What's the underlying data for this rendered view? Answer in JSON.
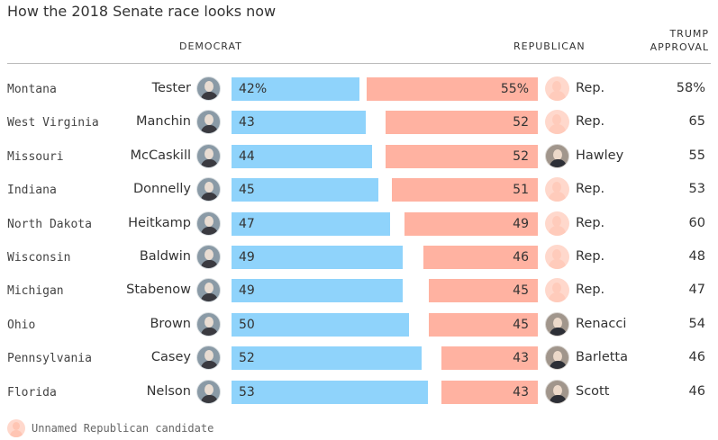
{
  "chart_data": {
    "type": "bar",
    "title": "How the 2018 Senate race looks now",
    "headers": {
      "democrat": "DEMOCRAT",
      "republican": "REPUBLICAN",
      "trump_line1": "TRUMP",
      "trump_line2": "APPROVAL"
    },
    "categories": [
      "Montana",
      "West Virginia",
      "Missouri",
      "Indiana",
      "North Dakota",
      "Wisconsin",
      "Michigan",
      "Ohio",
      "Pennsylvania",
      "Florida"
    ],
    "series": [
      {
        "name": "DEMOCRAT",
        "values": [
          42,
          43,
          44,
          45,
          47,
          49,
          49,
          50,
          52,
          53
        ],
        "color": "#8fd3fb"
      },
      {
        "name": "REPUBLICAN",
        "values": [
          55,
          52,
          52,
          51,
          49,
          46,
          45,
          45,
          43,
          43
        ],
        "color": "#ffb2a1"
      }
    ],
    "rows": [
      {
        "state": "Montana",
        "dem": "Tester",
        "dem_value": 42,
        "dem_label": "42%",
        "rep": "Rep.",
        "rep_named": false,
        "rep_value": 55,
        "rep_label": "55%",
        "trump": "58%"
      },
      {
        "state": "West Virginia",
        "dem": "Manchin",
        "dem_value": 43,
        "dem_label": "43",
        "rep": "Rep.",
        "rep_named": false,
        "rep_value": 52,
        "rep_label": "52",
        "trump": "65"
      },
      {
        "state": "Missouri",
        "dem": "McCaskill",
        "dem_value": 44,
        "dem_label": "44",
        "rep": "Hawley",
        "rep_named": true,
        "rep_value": 52,
        "rep_label": "52",
        "trump": "55"
      },
      {
        "state": "Indiana",
        "dem": "Donnelly",
        "dem_value": 45,
        "dem_label": "45",
        "rep": "Rep.",
        "rep_named": false,
        "rep_value": 51,
        "rep_label": "51",
        "trump": "53"
      },
      {
        "state": "North Dakota",
        "dem": "Heitkamp",
        "dem_value": 47,
        "dem_label": "47",
        "rep": "Rep.",
        "rep_named": false,
        "rep_value": 49,
        "rep_label": "49",
        "trump": "60"
      },
      {
        "state": "Wisconsin",
        "dem": "Baldwin",
        "dem_value": 49,
        "dem_label": "49",
        "rep": "Rep.",
        "rep_named": false,
        "rep_value": 46,
        "rep_label": "46",
        "trump": "48"
      },
      {
        "state": "Michigan",
        "dem": "Stabenow",
        "dem_value": 49,
        "dem_label": "49",
        "rep": "Rep.",
        "rep_named": false,
        "rep_value": 45,
        "rep_label": "45",
        "trump": "47"
      },
      {
        "state": "Ohio",
        "dem": "Brown",
        "dem_value": 50,
        "dem_label": "50",
        "rep": "Renacci",
        "rep_named": true,
        "rep_value": 45,
        "rep_label": "45",
        "trump": "54"
      },
      {
        "state": "Pennsylvania",
        "dem": "Casey",
        "dem_value": 52,
        "dem_label": "52",
        "rep": "Barletta",
        "rep_named": true,
        "rep_value": 43,
        "rep_label": "43",
        "trump": "46"
      },
      {
        "state": "Florida",
        "dem": "Nelson",
        "dem_value": 53,
        "dem_label": "53",
        "rep": "Scott",
        "rep_named": true,
        "rep_value": 43,
        "rep_label": "43",
        "trump": "46"
      }
    ],
    "legend": {
      "label": "Unnamed Republican candidate",
      "icon": "person-silhouette-icon"
    },
    "colors": {
      "democrat": "#8fd3fb",
      "republican": "#ffb2a1",
      "unnamed_avatar": "#ffd8cc"
    }
  }
}
